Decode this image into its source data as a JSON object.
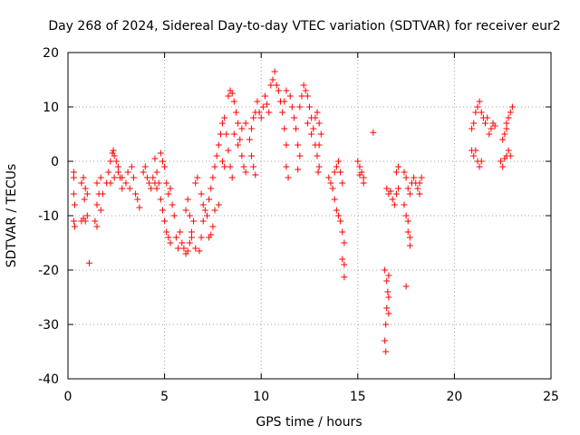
{
  "chart_data": {
    "type": "scatter",
    "title": "Day 268 of 2024, Sidereal Day-to-day VTEC variation (SDTVAR) for receiver eur2",
    "xlabel": "GPS time / hours",
    "ylabel": "SDTVAR / TECUs",
    "xlim": [
      0,
      25
    ],
    "ylim": [
      -40,
      20
    ],
    "x_ticks": [
      "0",
      "5",
      "10",
      "15",
      "20",
      "25"
    ],
    "y_ticks": [
      "-40",
      "-30",
      "-20",
      "-10",
      "0",
      "10",
      "20"
    ],
    "grid": true,
    "marker": "+",
    "color": "#ff0000",
    "series": [
      {
        "name": "SDTVAR",
        "points": [
          [
            0.3,
            -2
          ],
          [
            0.3,
            -3
          ],
          [
            0.3,
            -6
          ],
          [
            0.35,
            -8
          ],
          [
            0.3,
            -11
          ],
          [
            0.35,
            -12
          ],
          [
            0.7,
            -11
          ],
          [
            0.8,
            -10.5
          ],
          [
            0.9,
            -11
          ],
          [
            1.0,
            -10
          ],
          [
            0.7,
            -4
          ],
          [
            0.8,
            -3
          ],
          [
            0.9,
            -5
          ],
          [
            1.0,
            -6
          ],
          [
            0.85,
            -7
          ],
          [
            1.1,
            -18.7
          ],
          [
            1.4,
            -11
          ],
          [
            1.5,
            -12
          ],
          [
            1.5,
            -8
          ],
          [
            1.6,
            -6
          ],
          [
            1.5,
            -4
          ],
          [
            1.7,
            -3
          ],
          [
            1.8,
            -6
          ],
          [
            1.7,
            -9
          ],
          [
            2.0,
            -4
          ],
          [
            2.1,
            -2
          ],
          [
            2.2,
            0
          ],
          [
            2.3,
            1.5
          ],
          [
            2.35,
            2
          ],
          [
            2.4,
            1
          ],
          [
            2.5,
            0
          ],
          [
            2.6,
            -1
          ],
          [
            2.7,
            -3
          ],
          [
            2.8,
            -5
          ],
          [
            2.2,
            -4
          ],
          [
            2.4,
            -3
          ],
          [
            2.6,
            -2
          ],
          [
            2.8,
            -3
          ],
          [
            3.0,
            -4
          ],
          [
            3.2,
            -5
          ],
          [
            3.1,
            -2
          ],
          [
            3.3,
            -1
          ],
          [
            3.4,
            -3
          ],
          [
            3.5,
            -6
          ],
          [
            3.6,
            -7
          ],
          [
            3.7,
            -8.5
          ],
          [
            3.9,
            -2
          ],
          [
            4.0,
            -1
          ],
          [
            4.1,
            -3
          ],
          [
            4.2,
            -4
          ],
          [
            4.3,
            -5
          ],
          [
            4.4,
            -3
          ],
          [
            4.5,
            -4
          ],
          [
            4.6,
            -5
          ],
          [
            4.5,
            0.5
          ],
          [
            4.6,
            -2
          ],
          [
            4.7,
            -4
          ],
          [
            4.8,
            -7
          ],
          [
            4.9,
            -9
          ],
          [
            5.0,
            -11
          ],
          [
            5.1,
            -13
          ],
          [
            5.2,
            -14
          ],
          [
            5.3,
            -15
          ],
          [
            4.8,
            1.5
          ],
          [
            4.9,
            0
          ],
          [
            5.0,
            -1
          ],
          [
            5.1,
            -4
          ],
          [
            5.2,
            -6
          ],
          [
            5.3,
            -5
          ],
          [
            5.4,
            -8
          ],
          [
            5.5,
            -10
          ],
          [
            5.6,
            -14
          ],
          [
            5.7,
            -16
          ],
          [
            5.8,
            -13
          ],
          [
            5.9,
            -15
          ],
          [
            6.0,
            -16
          ],
          [
            6.1,
            -17
          ],
          [
            6.2,
            -16.5
          ],
          [
            6.3,
            -15
          ],
          [
            6.4,
            -13
          ],
          [
            6.5,
            -11
          ],
          [
            6.1,
            -9
          ],
          [
            6.2,
            -7
          ],
          [
            6.3,
            -10
          ],
          [
            6.4,
            -14
          ],
          [
            6.6,
            -16
          ],
          [
            6.8,
            -16.5
          ],
          [
            6.9,
            -14
          ],
          [
            7.0,
            -11
          ],
          [
            7.1,
            -9
          ],
          [
            6.6,
            -4
          ],
          [
            6.7,
            -3
          ],
          [
            6.9,
            -6
          ],
          [
            7.0,
            -8
          ],
          [
            7.2,
            -10
          ],
          [
            7.3,
            -7
          ],
          [
            7.4,
            -5
          ],
          [
            7.5,
            -3
          ],
          [
            7.6,
            -1
          ],
          [
            7.7,
            1
          ],
          [
            7.3,
            -14
          ],
          [
            7.4,
            -13.5
          ],
          [
            7.5,
            -12
          ],
          [
            7.6,
            -9
          ],
          [
            7.8,
            -8
          ],
          [
            7.8,
            3
          ],
          [
            7.9,
            5
          ],
          [
            8.0,
            7
          ],
          [
            8.1,
            8
          ],
          [
            8.2,
            5
          ],
          [
            8.3,
            2
          ],
          [
            8.4,
            -1
          ],
          [
            8.5,
            -3
          ],
          [
            8.0,
            0
          ],
          [
            8.1,
            -1
          ],
          [
            8.3,
            12
          ],
          [
            8.4,
            13
          ],
          [
            8.5,
            12.5
          ],
          [
            8.6,
            11
          ],
          [
            8.7,
            9
          ],
          [
            8.8,
            7
          ],
          [
            8.9,
            4
          ],
          [
            9.0,
            1
          ],
          [
            9.1,
            -1
          ],
          [
            9.2,
            -2
          ],
          [
            8.6,
            5
          ],
          [
            8.8,
            3
          ],
          [
            9.0,
            6
          ],
          [
            9.2,
            7
          ],
          [
            9.4,
            4
          ],
          [
            9.5,
            1
          ],
          [
            9.6,
            -1
          ],
          [
            9.7,
            -2.5
          ],
          [
            9.5,
            6
          ],
          [
            9.6,
            8
          ],
          [
            9.7,
            9
          ],
          [
            9.8,
            11
          ],
          [
            9.9,
            9
          ],
          [
            10.0,
            8
          ],
          [
            10.1,
            10
          ],
          [
            10.2,
            12
          ],
          [
            10.3,
            10.5
          ],
          [
            10.4,
            9
          ],
          [
            10.5,
            14
          ],
          [
            10.6,
            15
          ],
          [
            10.7,
            16.5
          ],
          [
            10.8,
            14
          ],
          [
            10.9,
            13
          ],
          [
            11.0,
            11
          ],
          [
            11.1,
            9
          ],
          [
            11.2,
            6
          ],
          [
            11.3,
            3
          ],
          [
            11.3,
            -1
          ],
          [
            11.4,
            -3
          ],
          [
            11.2,
            11
          ],
          [
            11.3,
            13
          ],
          [
            11.5,
            12
          ],
          [
            11.6,
            10
          ],
          [
            11.7,
            8
          ],
          [
            11.8,
            6
          ],
          [
            11.9,
            3
          ],
          [
            12.0,
            1
          ],
          [
            11.9,
            -1.5
          ],
          [
            12.0,
            10
          ],
          [
            12.1,
            12
          ],
          [
            12.2,
            14
          ],
          [
            12.3,
            13
          ],
          [
            12.4,
            12
          ],
          [
            12.5,
            10
          ],
          [
            12.6,
            8
          ],
          [
            12.7,
            6
          ],
          [
            12.8,
            3
          ],
          [
            12.9,
            1
          ],
          [
            12.4,
            7
          ],
          [
            12.6,
            5
          ],
          [
            12.8,
            8
          ],
          [
            12.9,
            9
          ],
          [
            13.0,
            7
          ],
          [
            13.1,
            5
          ],
          [
            13.0,
            3
          ],
          [
            12.95,
            -2
          ],
          [
            13.0,
            -1
          ],
          [
            13.5,
            -3
          ],
          [
            13.6,
            -4
          ],
          [
            13.7,
            -5
          ],
          [
            13.8,
            -7
          ],
          [
            13.9,
            -9
          ],
          [
            14.0,
            -10
          ],
          [
            14.1,
            -11
          ],
          [
            14.2,
            -13
          ],
          [
            14.3,
            -15
          ],
          [
            14.2,
            -18
          ],
          [
            14.3,
            -19
          ],
          [
            14.3,
            -21.3
          ],
          [
            14.0,
            0
          ],
          [
            14.1,
            -2
          ],
          [
            14.2,
            -4
          ],
          [
            13.9,
            -1
          ],
          [
            13.8,
            -2
          ],
          [
            15.0,
            0
          ],
          [
            15.1,
            -1
          ],
          [
            15.2,
            -2
          ],
          [
            15.3,
            -3
          ],
          [
            15.1,
            -2.5
          ],
          [
            15.3,
            -4
          ],
          [
            15.8,
            5.3
          ],
          [
            16.4,
            -20
          ],
          [
            16.5,
            -22
          ],
          [
            16.6,
            -25
          ],
          [
            16.5,
            -27
          ],
          [
            16.6,
            -28
          ],
          [
            16.45,
            -30
          ],
          [
            16.4,
            -33
          ],
          [
            16.45,
            -35
          ],
          [
            16.55,
            -24
          ],
          [
            16.6,
            -21
          ],
          [
            16.5,
            -5
          ],
          [
            16.6,
            -6
          ],
          [
            16.7,
            -5.5
          ],
          [
            16.8,
            -7
          ],
          [
            16.9,
            -8
          ],
          [
            17.0,
            -6
          ],
          [
            17.1,
            -5
          ],
          [
            17.0,
            -2
          ],
          [
            17.1,
            -1
          ],
          [
            17.4,
            -8
          ],
          [
            17.5,
            -10
          ],
          [
            17.6,
            -11
          ],
          [
            17.6,
            -13
          ],
          [
            17.7,
            -14
          ],
          [
            17.7,
            -15.5
          ],
          [
            17.4,
            -2
          ],
          [
            17.5,
            -3
          ],
          [
            17.6,
            -5
          ],
          [
            17.7,
            -6
          ],
          [
            17.8,
            -4
          ],
          [
            17.9,
            -3
          ],
          [
            18.0,
            -4
          ],
          [
            18.1,
            -5
          ],
          [
            18.2,
            -4
          ],
          [
            18.3,
            -3
          ],
          [
            18.2,
            -6
          ],
          [
            17.5,
            -23
          ],
          [
            20.9,
            6
          ],
          [
            21.0,
            7
          ],
          [
            21.1,
            9
          ],
          [
            21.2,
            10
          ],
          [
            21.3,
            11
          ],
          [
            21.4,
            9
          ],
          [
            21.5,
            8
          ],
          [
            21.6,
            7
          ],
          [
            21.7,
            8
          ],
          [
            20.9,
            2
          ],
          [
            21.0,
            1
          ],
          [
            21.1,
            2
          ],
          [
            21.2,
            0
          ],
          [
            21.3,
            -1
          ],
          [
            21.4,
            0
          ],
          [
            21.8,
            5
          ],
          [
            21.9,
            6
          ],
          [
            22.0,
            7
          ],
          [
            22.1,
            6.5
          ],
          [
            22.4,
            0
          ],
          [
            22.5,
            -1
          ],
          [
            22.6,
            0.5
          ],
          [
            22.7,
            1
          ],
          [
            22.8,
            2
          ],
          [
            22.9,
            1
          ],
          [
            22.5,
            4
          ],
          [
            22.6,
            5
          ],
          [
            22.7,
            6
          ],
          [
            22.8,
            8
          ],
          [
            22.9,
            9
          ],
          [
            23.0,
            10
          ],
          [
            22.7,
            7
          ]
        ]
      }
    ]
  }
}
